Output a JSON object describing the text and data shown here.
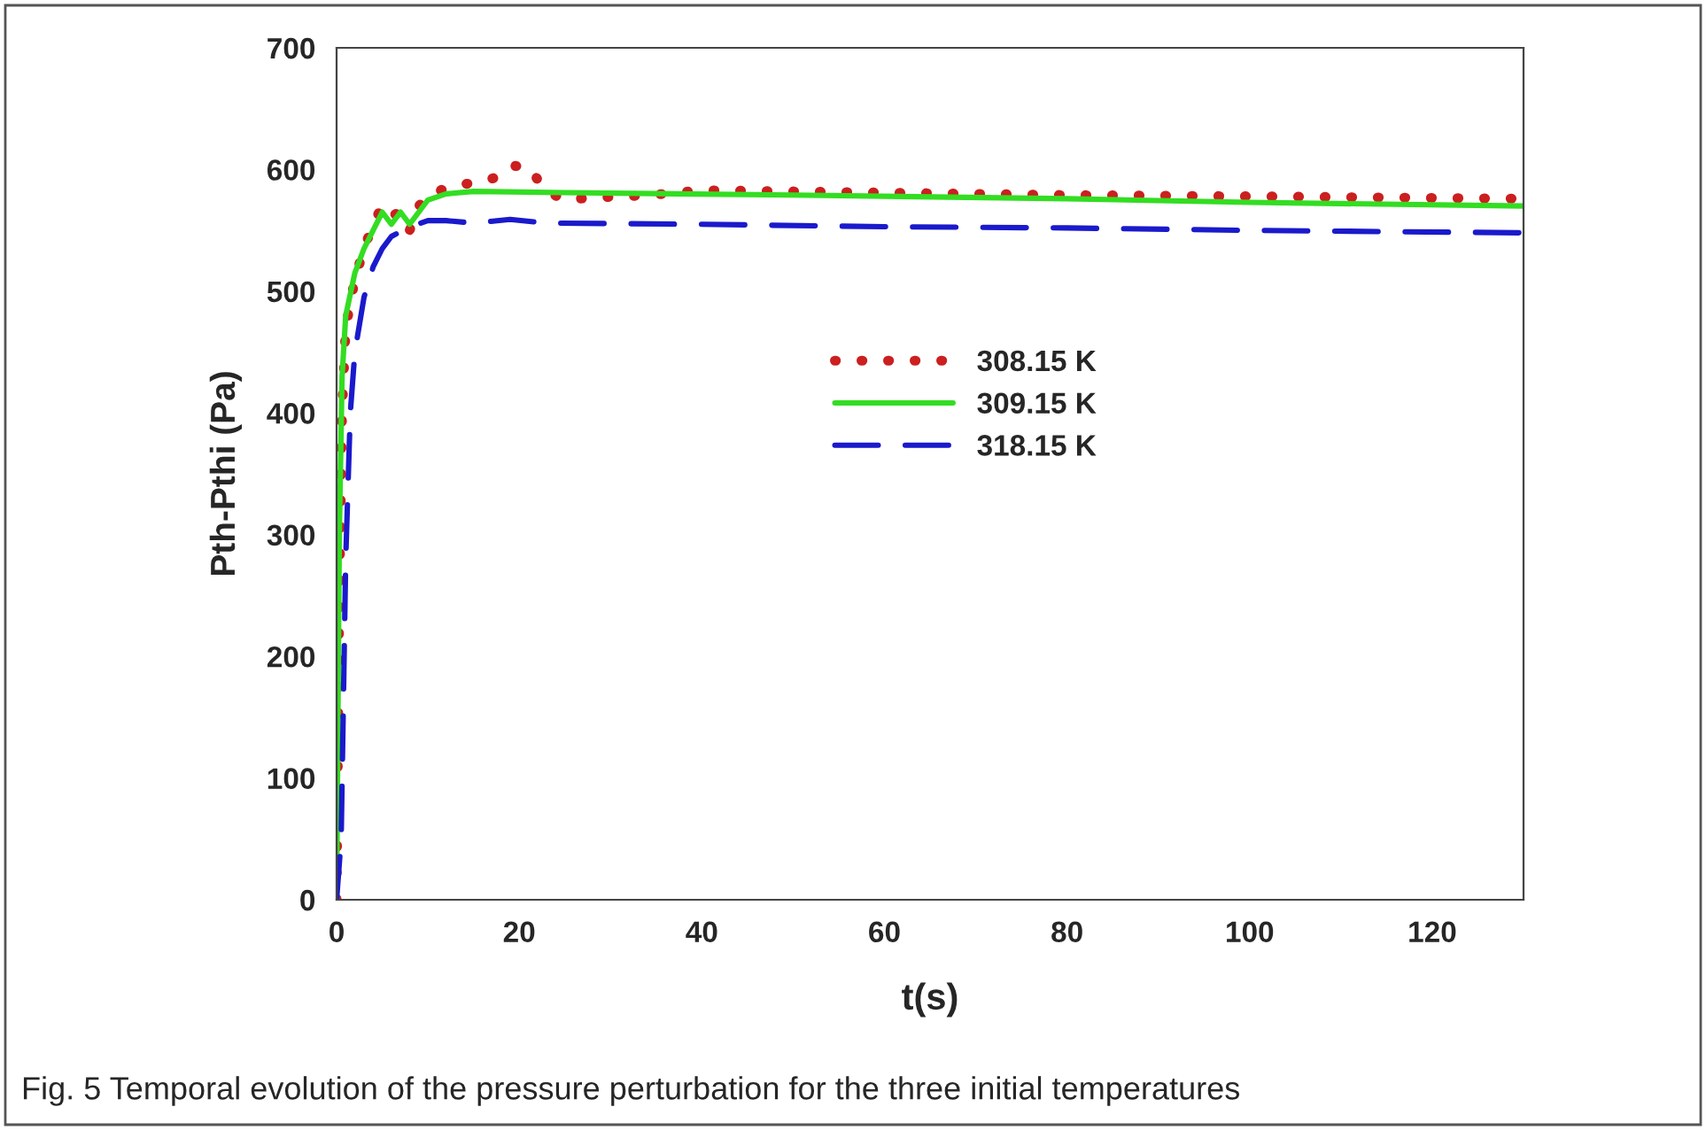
{
  "chart_data": {
    "type": "line",
    "xlabel": "t(s)",
    "ylabel": "Pth-Pthi (Pa)",
    "annotations": [
      "Fig. 5 Temporal evolution of the pressure perturbation for the three initial temperatures"
    ],
    "xlim": [
      0,
      130
    ],
    "xticks": [
      0,
      20,
      40,
      60,
      80,
      100,
      120
    ],
    "ylim": [
      0,
      700
    ],
    "yticks": [
      0,
      100,
      200,
      300,
      400,
      500,
      600,
      700
    ],
    "grid": false,
    "legend": "center",
    "marker": "none",
    "series": [
      {
        "name": "308.15 K",
        "color": "#cc1f1f",
        "line_style": "dotted",
        "x": [
          0,
          0.3,
          0.6,
          1,
          2,
          3,
          4,
          5,
          6,
          7,
          8,
          9,
          10,
          12,
          14,
          16,
          18,
          19.5,
          21,
          22,
          23,
          25,
          28,
          32,
          36,
          40,
          60,
          80,
          100,
          130
        ],
        "values": [
          0,
          250,
          400,
          470,
          510,
          535,
          555,
          570,
          562,
          565,
          550,
          570,
          578,
          585,
          588,
          590,
          595,
          603,
          602,
          592,
          582,
          575,
          577,
          578,
          580,
          583,
          581,
          579,
          578,
          576
        ]
      },
      {
        "name": "309.15 K",
        "color": "#33dd22",
        "line_style": "solid",
        "x": [
          0,
          0.3,
          0.6,
          1,
          2,
          3,
          4,
          5,
          6,
          7,
          8,
          9,
          10,
          12,
          15,
          25,
          50,
          80,
          100,
          130
        ],
        "values": [
          0,
          300,
          430,
          480,
          515,
          535,
          550,
          565,
          555,
          565,
          555,
          565,
          575,
          580,
          582,
          581,
          579,
          576,
          573,
          570
        ]
      },
      {
        "name": "318.15 K",
        "color": "#1a1acc",
        "line_style": "dashed",
        "x": [
          0,
          0.5,
          1,
          1.5,
          2,
          3,
          4,
          5,
          6,
          8,
          10,
          12,
          15,
          19,
          23,
          40,
          60,
          80,
          100,
          130
        ],
        "values": [
          0,
          50,
          280,
          400,
          450,
          495,
          520,
          535,
          545,
          553,
          558,
          558,
          556,
          559,
          556,
          555,
          553,
          552,
          550,
          548
        ]
      }
    ]
  }
}
